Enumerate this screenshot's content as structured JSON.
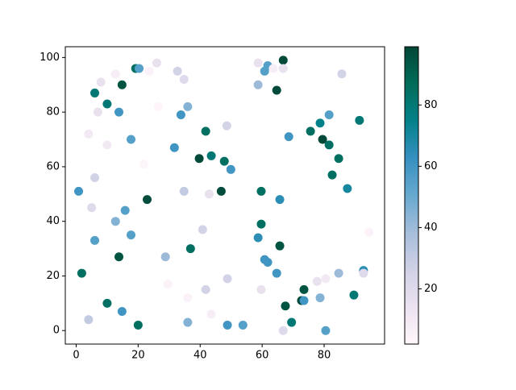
{
  "chart_data": {
    "type": "scatter",
    "x": [
      19.2,
      20.3,
      23.6,
      26,
      8,
      12.7,
      14.8,
      6,
      10,
      7,
      13.8,
      4,
      10,
      17.7,
      26.5,
      32.7,
      34.8,
      36,
      33.8,
      41.8,
      48.6,
      31.7,
      39.7,
      43.6,
      47.8,
      49.9,
      21.8,
      6,
      0.8,
      22.9,
      34.8,
      42.9,
      46.8,
      5,
      15.8,
      12.7,
      40.8,
      6,
      17.7,
      13.8,
      28.8,
      36.9,
      1.8,
      29.6,
      41.8,
      36,
      48.8,
      10,
      14.8,
      43.6,
      4,
      36,
      20,
      48.8,
      53.8,
      58.7,
      66.8,
      61.8,
      60.8,
      63.6,
      66.8,
      58.7,
      64.7,
      85.7,
      81.6,
      78.7,
      75.6,
      68.6,
      79.5,
      81.6,
      84.7,
      82.6,
      91.4,
      87.5,
      59.7,
      65.7,
      59.7,
      58.7,
      65.7,
      60.8,
      61.8,
      64.7,
      59.7,
      67.5,
      73.5,
      72.7,
      73.5,
      78.7,
      77.7,
      80.5,
      84.7,
      69.5,
      66.8,
      80.5,
      89.6,
      92.7,
      92.7,
      94.5
    ],
    "y": [
      96,
      96,
      95,
      98,
      91,
      94,
      90,
      87,
      83,
      80,
      80,
      72,
      68,
      70,
      82,
      95,
      92,
      82,
      79,
      73,
      75,
      67,
      63,
      64,
      62,
      59,
      61,
      56,
      51,
      48,
      51,
      50,
      51,
      45,
      44,
      40,
      37,
      33,
      35,
      27,
      27,
      30,
      21,
      17,
      15,
      12,
      19,
      10,
      7,
      6,
      4,
      3,
      2,
      2,
      2,
      98,
      99,
      97,
      95,
      96,
      96,
      90,
      88,
      94,
      79,
      76,
      73,
      71,
      70,
      68,
      63,
      57,
      77,
      52,
      51,
      48,
      39,
      34,
      31,
      26,
      25,
      21,
      15,
      9,
      15,
      11,
      11,
      12,
      18,
      19,
      21,
      3,
      0,
      0,
      13,
      22,
      21,
      36
    ],
    "c": [
      85,
      55,
      5,
      15,
      15,
      8,
      95,
      80,
      80,
      15,
      60,
      10,
      10,
      55,
      3,
      25,
      20,
      45,
      60,
      85,
      25,
      60,
      98,
      80,
      85,
      60,
      3,
      25,
      60,
      97,
      30,
      15,
      97,
      20,
      55,
      45,
      25,
      55,
      55,
      95,
      40,
      85,
      85,
      5,
      25,
      5,
      25,
      85,
      60,
      8,
      30,
      45,
      85,
      60,
      55,
      15,
      98,
      55,
      55,
      8,
      15,
      40,
      98,
      25,
      55,
      75,
      85,
      60,
      98,
      85,
      85,
      85,
      80,
      70,
      85,
      65,
      85,
      65,
      95,
      60,
      60,
      60,
      15,
      95,
      95,
      98,
      60,
      45,
      15,
      10,
      40,
      80,
      20,
      55,
      80,
      65,
      20,
      5
    ],
    "colormap": [
      "#fff7fb",
      "#ece2f0",
      "#d0d1e6",
      "#a6bddb",
      "#67a9cf",
      "#3690c0",
      "#02818a",
      "#016c59",
      "#014636"
    ],
    "clim": [
      2,
      99
    ],
    "cticks": [
      20,
      40,
      60,
      80
    ],
    "xlim": [
      -3.5,
      99.5
    ],
    "xticks": [
      0,
      20,
      40,
      60,
      80
    ],
    "ylim": [
      -4.95,
      103.95
    ],
    "yticks": [
      0,
      20,
      40,
      60,
      80,
      100
    ]
  }
}
